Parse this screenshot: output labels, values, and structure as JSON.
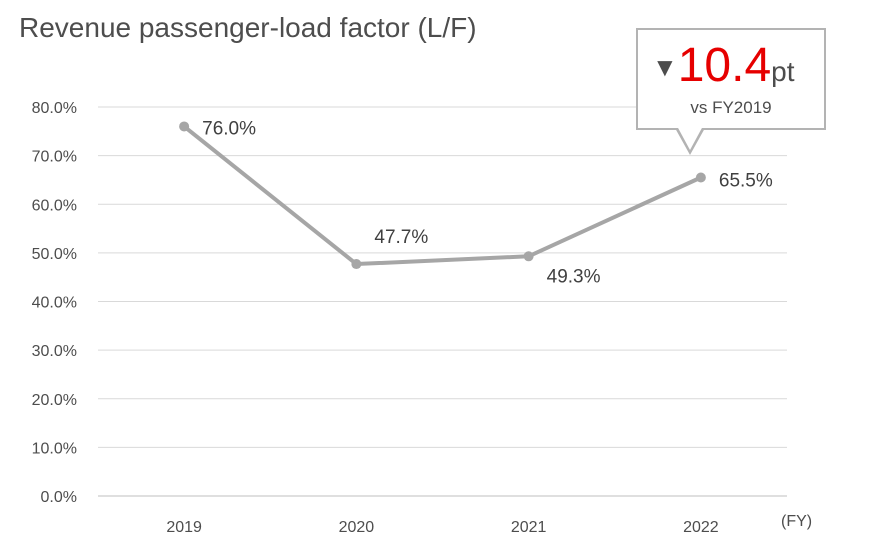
{
  "chart_data": {
    "type": "line",
    "title": "Revenue passenger-load factor (L/F)",
    "categories": [
      "2019",
      "2020",
      "2021",
      "2022"
    ],
    "values": [
      76.0,
      47.7,
      49.3,
      65.5
    ],
    "data_labels": [
      "76.0%",
      "47.7%",
      "49.3%",
      "65.5%"
    ],
    "y_ticks": [
      "0.0%",
      "10.0%",
      "20.0%",
      "30.0%",
      "40.0%",
      "50.0%",
      "60.0%",
      "70.0%",
      "80.0%"
    ],
    "ylim": [
      0,
      80
    ],
    "x_unit": "(FY)",
    "grid": true,
    "line_color": "#a6a6a6",
    "callout": {
      "arrow": "▼",
      "value": "10.4",
      "unit": "pt",
      "note": "vs FY2019",
      "value_color": "#e60000"
    }
  }
}
